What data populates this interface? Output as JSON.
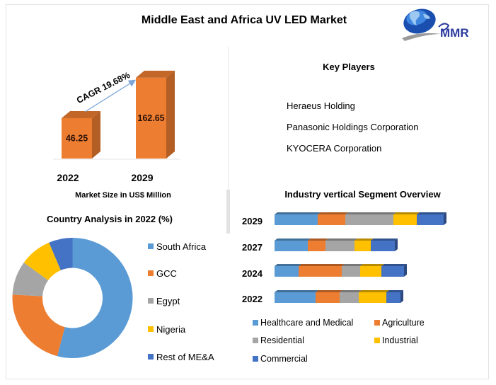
{
  "title": "Middle East and Africa UV LED Market",
  "logo": {
    "text": "MMR",
    "icon": "globe-icon"
  },
  "key_players": {
    "title": "Key Players",
    "items": [
      "Heraeus Holding",
      "Panasonic Holdings Corporation",
      "KYOCERA Corporation"
    ]
  },
  "colors": {
    "bar_orange": "#ED7D31",
    "light_blue": "#5B9BD5",
    "orange": "#ED7D31",
    "gray": "#A5A5A5",
    "yellow": "#FFC000",
    "dark_blue": "#4472C4"
  },
  "chart_data": [
    {
      "type": "bar",
      "title": "",
      "categories": [
        "2022",
        "2029"
      ],
      "values": [
        46.25,
        162.65
      ],
      "value_labels": [
        "46.25",
        "162.65"
      ],
      "xlabel": "Market Size in US$ Million",
      "ylabel": "",
      "annotation": "CAGR 19.68%",
      "color": "#ED7D31",
      "grid": false
    },
    {
      "type": "pie",
      "subtype": "donut",
      "title": "Country Analysis in 2022 (%)",
      "labels": [
        "South Africa",
        "GCC",
        "Egypt",
        "Nigeria",
        "Rest of ME&A"
      ],
      "values": [
        54.1,
        21.8,
        9.1,
        8.6,
        6.4
      ],
      "colors": [
        "#5B9BD5",
        "#ED7D31",
        "#A5A5A5",
        "#FFC000",
        "#4472C4"
      ],
      "legend": "right"
    },
    {
      "type": "bar",
      "orientation": "horizontal",
      "stacked": true,
      "title": "Industry vertical Segment Overview",
      "categories": [
        "2029",
        "2027",
        "2024",
        "2022"
      ],
      "series": [
        {
          "name": "Healthcare and Medical",
          "color": "#5B9BD5",
          "values": [
            61,
            47,
            34,
            58
          ]
        },
        {
          "name": "Agriculture",
          "color": "#ED7D31",
          "values": [
            39,
            25,
            61,
            34
          ]
        },
        {
          "name": "Residential",
          "color": "#A5A5A5",
          "values": [
            68,
            41,
            26,
            27
          ]
        },
        {
          "name": "Industrial",
          "color": "#FFC000",
          "values": [
            33,
            23,
            30,
            39
          ]
        },
        {
          "name": "Commercial",
          "color": "#4472C4",
          "values": [
            38,
            34,
            32,
            20
          ]
        }
      ],
      "value_units": "relative (no axis shown)",
      "legend": "bottom",
      "grid": false
    }
  ]
}
